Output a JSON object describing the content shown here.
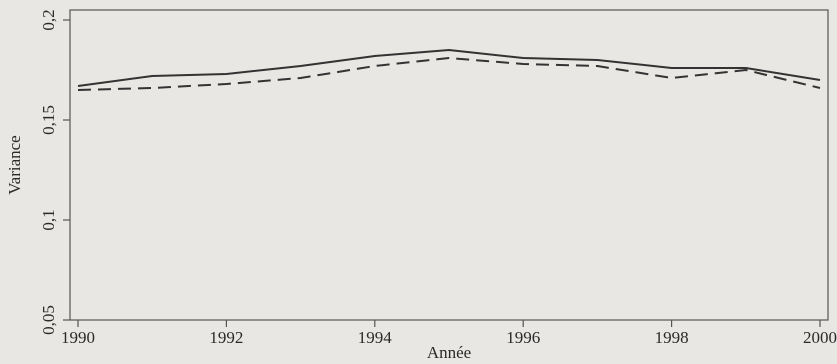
{
  "chart_data": {
    "type": "line",
    "title": "",
    "xlabel": "Année",
    "ylabel": "Variance",
    "x": [
      1990,
      1991,
      1992,
      1993,
      1994,
      1995,
      1996,
      1997,
      1998,
      1999,
      2000
    ],
    "xlim": [
      1990,
      2000
    ],
    "ylim": [
      0.05,
      0.2
    ],
    "x_ticks": [
      1990,
      1992,
      1994,
      1996,
      1998,
      2000
    ],
    "x_tick_labels": [
      "1990",
      "1992",
      "1994",
      "1996",
      "1998",
      "2000"
    ],
    "y_ticks": [
      0.05,
      0.1,
      0.15,
      0.2
    ],
    "y_tick_labels": [
      "0,05",
      "0,1",
      "0,15",
      "0,2"
    ],
    "grid": false,
    "legend": "none",
    "series": [
      {
        "style": "solid",
        "color": "#333333",
        "values": [
          0.167,
          0.172,
          0.173,
          0.177,
          0.182,
          0.185,
          0.181,
          0.18,
          0.176,
          0.176,
          0.17
        ]
      },
      {
        "style": "dashed",
        "color": "#333333",
        "values": [
          0.165,
          0.166,
          0.168,
          0.171,
          0.177,
          0.181,
          0.178,
          0.177,
          0.171,
          0.175,
          0.166
        ]
      }
    ]
  }
}
